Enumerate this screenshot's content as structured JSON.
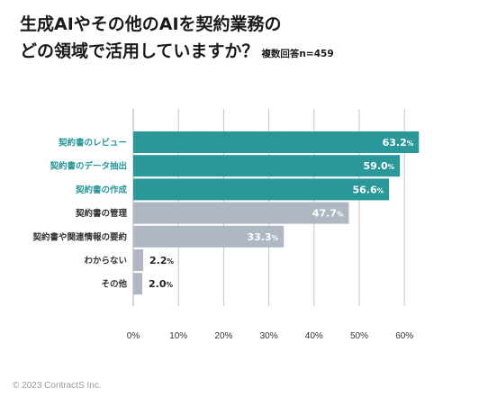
{
  "title_line1": "生成AIやその他のAIを契約業務の",
  "title_line2": "どの領域で活用していますか？",
  "title_note": "複数回答n=459",
  "copyright": "© 2023 ContractS Inc.",
  "chart_data": {
    "type": "bar",
    "orientation": "horizontal",
    "categories": [
      "契約書のレビュー",
      "契約書のデータ抽出",
      "契約書の作成",
      "契約書の管理",
      "契約書や関連情報の要約",
      "わからない",
      "その他"
    ],
    "values": [
      63.2,
      59.0,
      56.6,
      47.7,
      33.3,
      2.2,
      2.0
    ],
    "value_labels": [
      "63.2",
      "59.0",
      "56.6",
      "47.7",
      "33.3",
      "2.2",
      "2.0"
    ],
    "value_unit": "%",
    "highlight": [
      true,
      true,
      true,
      false,
      false,
      false,
      false
    ],
    "xlim": [
      0,
      60
    ],
    "xticks": [
      0,
      10,
      20,
      30,
      40,
      50,
      60
    ],
    "xtick_labels": [
      "0%",
      "10%",
      "20%",
      "30%",
      "40%",
      "50%",
      "60%"
    ],
    "grid": true,
    "colors": {
      "highlight": "#2a9799",
      "muted": "#afb7c3",
      "highlight_label": "#2a9799",
      "muted_label": "#333333",
      "grid": "#c4c4c4"
    }
  }
}
